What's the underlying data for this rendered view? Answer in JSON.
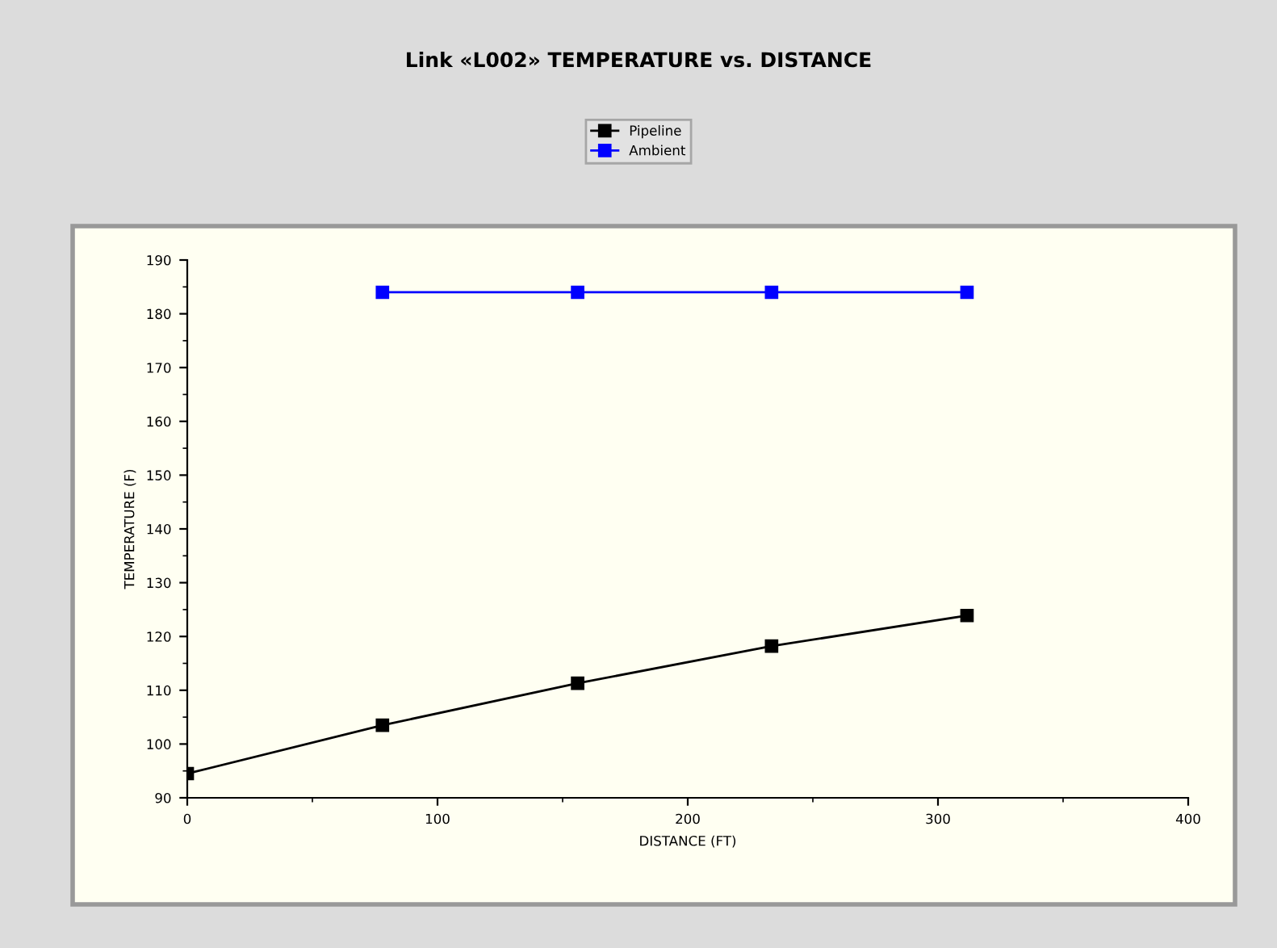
{
  "chart_data": {
    "type": "line",
    "title": "Link «L002» TEMPERATURE vs. DISTANCE",
    "xlabel": "DISTANCE (FT)",
    "ylabel": "TEMPERATURE (F)",
    "xlim": [
      0,
      400
    ],
    "xticks": [
      0,
      100,
      200,
      300,
      400
    ],
    "ylim": [
      90,
      190
    ],
    "yticks": [
      90,
      100,
      110,
      120,
      130,
      140,
      150,
      160,
      170,
      180,
      190
    ],
    "series": [
      {
        "name": "Pipeline",
        "color": "#000000",
        "x": [
          0,
          78,
          156,
          233.5,
          311.6
        ],
        "values": [
          94.5,
          103.5,
          111.3,
          118.2,
          123.9
        ]
      },
      {
        "name": "Ambient",
        "color": "#0000ff",
        "x": [
          78,
          156,
          233.5,
          311.6
        ],
        "values": [
          184,
          184,
          184,
          184
        ]
      }
    ],
    "marker": "square",
    "line_style": "solid",
    "legend": "top",
    "grid": false
  }
}
